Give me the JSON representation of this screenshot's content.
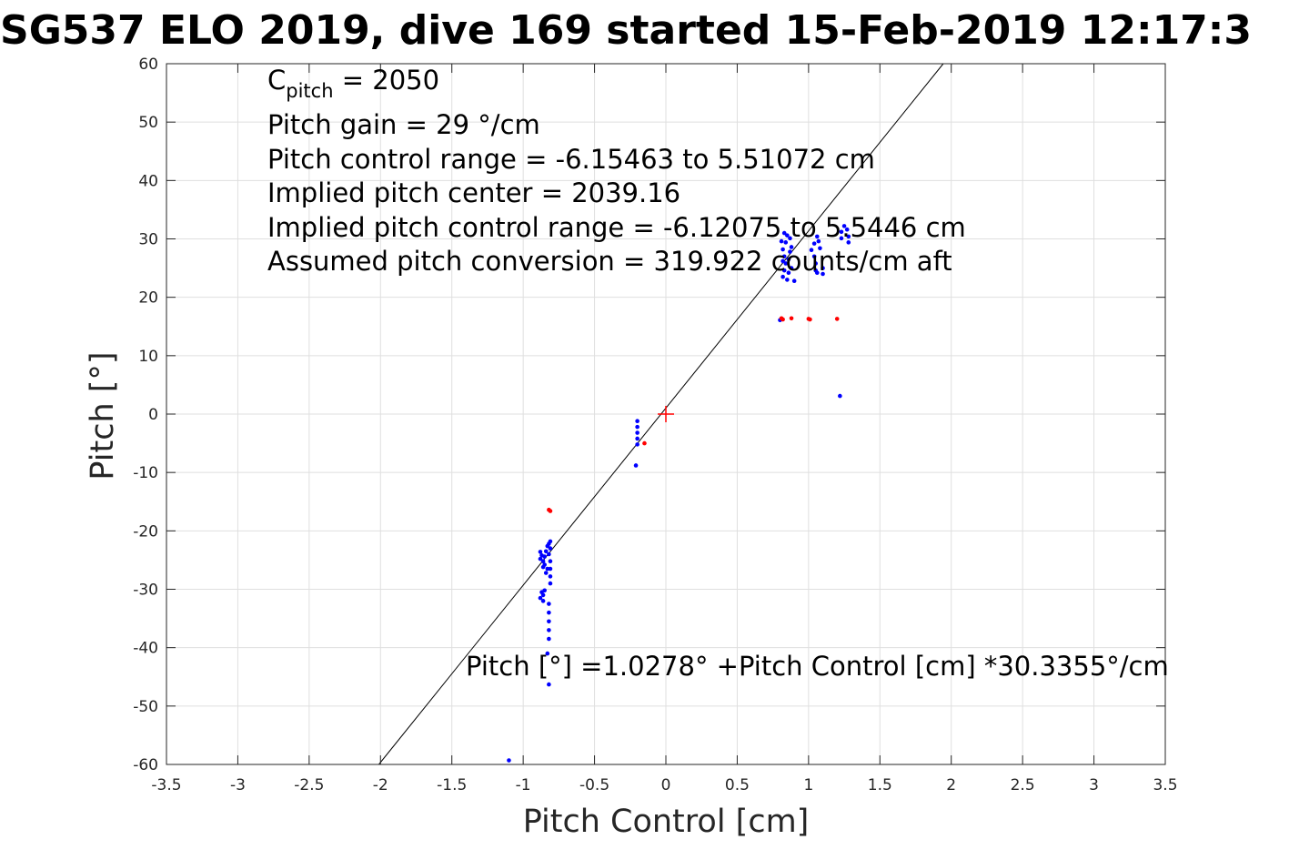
{
  "chart_data": {
    "type": "scatter",
    "title": "SG537 ELO 2019, dive 169 started 15-Feb-2019 12:17:3",
    "xlabel": "Pitch Control [cm]",
    "ylabel": "Pitch [°]",
    "xlim": [
      -3.5,
      3.5
    ],
    "ylim": [
      -60,
      60
    ],
    "grid": true,
    "x_ticks": [
      "-3.5",
      "-3",
      "-2.5",
      "-2",
      "-1.5",
      "-1",
      "-0.5",
      "0",
      "0.5",
      "1",
      "1.5",
      "2",
      "2.5",
      "3",
      "3.5"
    ],
    "y_ticks": [
      "-60",
      "-50",
      "-40",
      "-30",
      "-20",
      "-10",
      "0",
      "10",
      "20",
      "30",
      "40",
      "50",
      "60"
    ],
    "annotations": {
      "c_pitch_main": "C",
      "c_pitch_sub": "pitch",
      "c_pitch_value": " = 2050",
      "line2": "Pitch gain = 29 °/cm",
      "line3": "Pitch control range = -6.15463 to 5.51072 cm",
      "line4": "Implied pitch center = 2039.16",
      "line5": "Implied pitch control range = -6.12075 to 5.5446 cm",
      "line6": "Assumed pitch conversion = 319.922 counts/cm aft",
      "fit_label": "Pitch [°] =1.0278° +Pitch Control [cm] *30.3355°/cm"
    },
    "fit_line": {
      "intercept": 1.0278,
      "slope": 30.3355,
      "color": "#000000"
    },
    "center_marker": {
      "x": 0,
      "y": 0,
      "color": "#ff0000"
    },
    "series": [
      {
        "color": "#0000ff",
        "points": [
          [
            -1.1,
            -59.3
          ],
          [
            -0.82,
            -46.3
          ],
          [
            -0.83,
            -41
          ],
          [
            -0.82,
            -38.5
          ],
          [
            -0.82,
            -37
          ],
          [
            -0.82,
            -35.5
          ],
          [
            -0.82,
            -34
          ],
          [
            -0.82,
            -32.5
          ],
          [
            -0.86,
            -31
          ],
          [
            -0.86,
            -32
          ],
          [
            -0.88,
            -31.5
          ],
          [
            -0.87,
            -30.5
          ],
          [
            -0.85,
            -30.2
          ],
          [
            -0.81,
            -29
          ],
          [
            -0.81,
            -27.8
          ],
          [
            -0.81,
            -26.5
          ],
          [
            -0.81,
            -25.2
          ],
          [
            -0.82,
            -24
          ],
          [
            -0.81,
            -23
          ],
          [
            -0.82,
            -22.2
          ],
          [
            -0.81,
            -21.8
          ],
          [
            -0.83,
            -22.6
          ],
          [
            -0.84,
            -23.5
          ],
          [
            -0.85,
            -24.4
          ],
          [
            -0.86,
            -25.2
          ],
          [
            -0.87,
            -24.2
          ],
          [
            -0.88,
            -23.6
          ],
          [
            -0.88,
            -24.8
          ],
          [
            -0.86,
            -26.2
          ],
          [
            -0.85,
            -25.8
          ],
          [
            -0.84,
            -27.2
          ],
          [
            -0.83,
            -26.5
          ],
          [
            -0.2,
            -1.2
          ],
          [
            -0.2,
            -2.2
          ],
          [
            -0.2,
            -3.2
          ],
          [
            -0.2,
            -4.2
          ],
          [
            -0.2,
            -5.2
          ],
          [
            -0.21,
            -8.8
          ],
          [
            0.8,
            16.1
          ],
          [
            0.82,
            23.5
          ],
          [
            0.83,
            24.6
          ],
          [
            0.84,
            25.8
          ],
          [
            0.83,
            27
          ],
          [
            0.82,
            28.2
          ],
          [
            0.84,
            29.4
          ],
          [
            0.85,
            30.6
          ],
          [
            0.83,
            31
          ],
          [
            0.86,
            26.5
          ],
          [
            0.87,
            27.8
          ],
          [
            0.86,
            24.2
          ],
          [
            0.85,
            23
          ],
          [
            0.88,
            28.6
          ],
          [
            0.81,
            29.6
          ],
          [
            0.82,
            26.2
          ],
          [
            0.88,
            25
          ],
          [
            0.9,
            22.8
          ],
          [
            0.87,
            30.1
          ],
          [
            1.02,
            28.1
          ],
          [
            1.04,
            27
          ],
          [
            1.05,
            25.8
          ],
          [
            1.05,
            24.6
          ],
          [
            1.06,
            24.2
          ],
          [
            1.04,
            29.2
          ],
          [
            1.06,
            30.4
          ],
          [
            1.07,
            29.6
          ],
          [
            1.08,
            28.4
          ],
          [
            1.1,
            25
          ],
          [
            1.1,
            24
          ],
          [
            1.22,
            3.1
          ],
          [
            1.23,
            31.2
          ],
          [
            1.23,
            30.1
          ],
          [
            1.27,
            31.6
          ],
          [
            1.28,
            30.4
          ],
          [
            1.28,
            29.4
          ],
          [
            1.25,
            32.2
          ]
        ]
      },
      {
        "color": "#ff0000",
        "points": [
          [
            -0.82,
            -16.4
          ],
          [
            -0.81,
            -16.6
          ],
          [
            -0.15,
            -5
          ],
          [
            0.81,
            16.4
          ],
          [
            0.82,
            16.2
          ],
          [
            0.88,
            16.4
          ],
          [
            1,
            16.3
          ],
          [
            1.01,
            16.2
          ],
          [
            1.2,
            16.3
          ]
        ]
      }
    ]
  }
}
